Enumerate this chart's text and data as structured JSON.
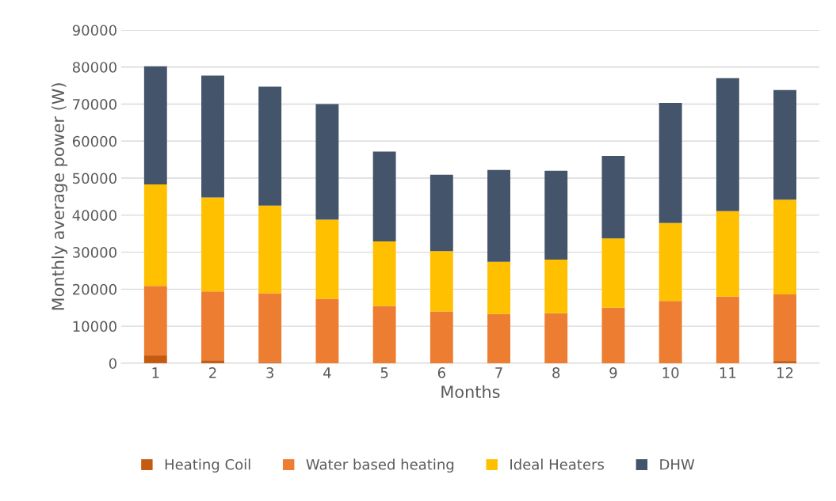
{
  "chart_data": {
    "type": "bar",
    "stacked": true,
    "xlabel": "Months",
    "ylabel": "Monthly average power (W)",
    "categories": [
      "1",
      "2",
      "3",
      "4",
      "5",
      "6",
      "7",
      "8",
      "9",
      "10",
      "11",
      "12"
    ],
    "series": [
      {
        "name": "Heating Coil",
        "color": "#c55a11",
        "values": [
          2100,
          800,
          300,
          0,
          0,
          0,
          0,
          0,
          0,
          0,
          0,
          600
        ]
      },
      {
        "name": "Water based heating",
        "color": "#ed7d31",
        "values": [
          18800,
          18600,
          18600,
          17400,
          15500,
          14000,
          13300,
          13500,
          15000,
          16800,
          18000,
          18000
        ]
      },
      {
        "name": "Ideal Heaters",
        "color": "#ffc000",
        "values": [
          27400,
          25400,
          23700,
          21400,
          17400,
          16300,
          14100,
          14500,
          18700,
          21100,
          23100,
          25600
        ]
      },
      {
        "name": "DHW",
        "color": "#44546a",
        "values": [
          31900,
          32900,
          32100,
          31200,
          24300,
          20600,
          24800,
          24000,
          22300,
          32400,
          35900,
          29600
        ]
      }
    ],
    "ylim": [
      0,
      90000
    ],
    "yticks": [
      0,
      10000,
      20000,
      30000,
      40000,
      50000,
      60000,
      70000,
      80000,
      90000
    ],
    "grid": "y",
    "legend": "bottom"
  }
}
